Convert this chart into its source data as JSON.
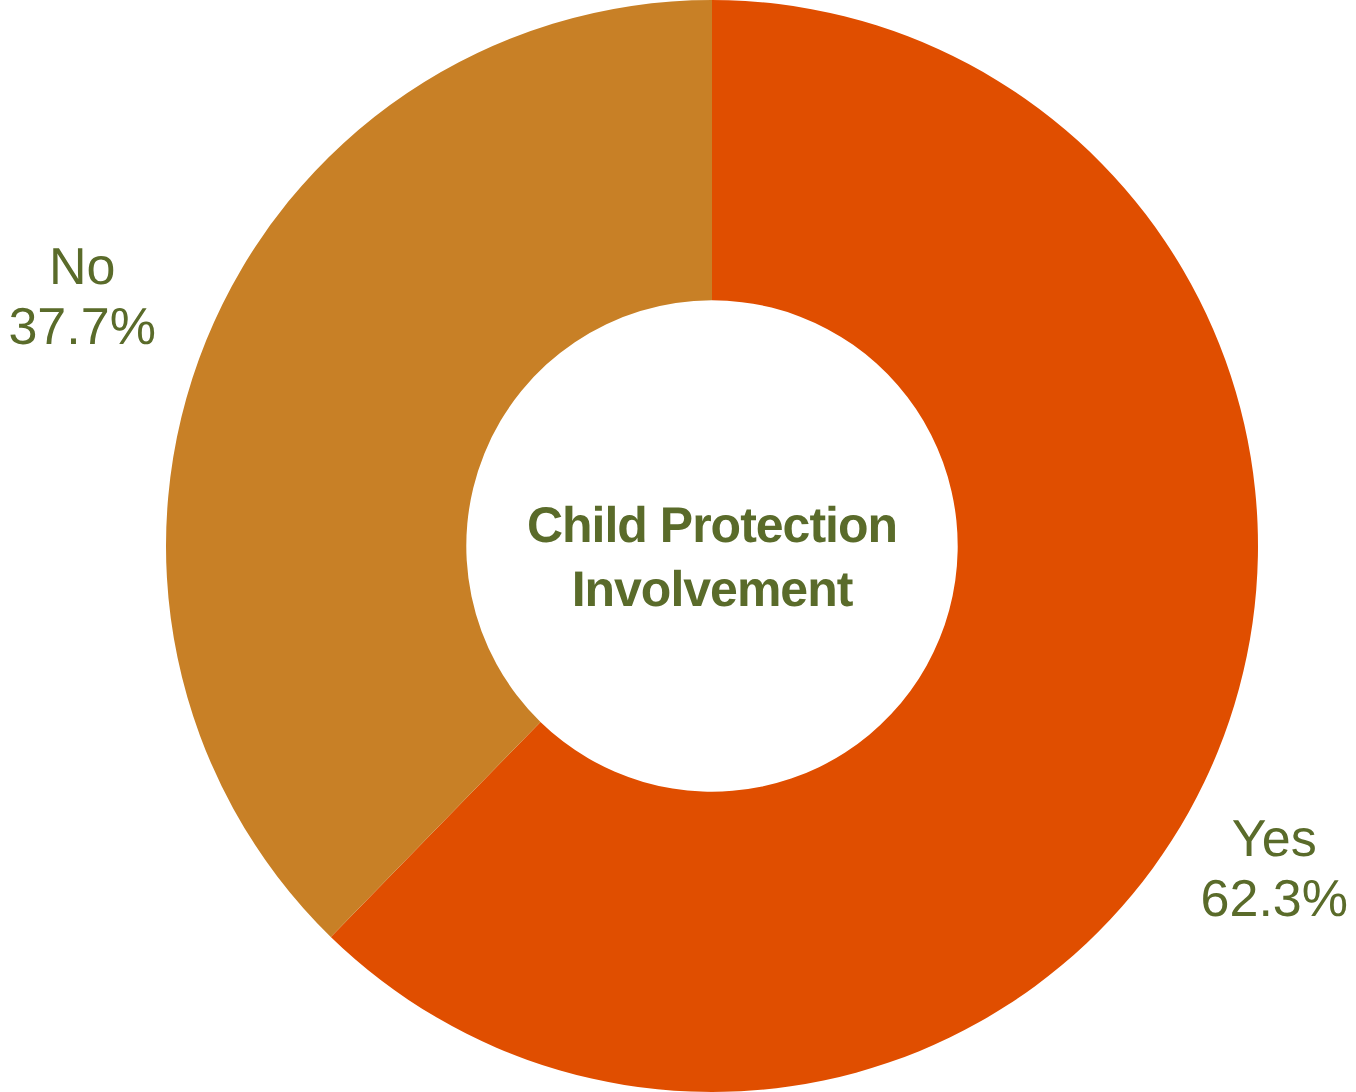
{
  "chart_data": {
    "type": "donut",
    "title": "Child Protection Involvement",
    "categories": [
      "Yes",
      "No"
    ],
    "values": [
      62.3,
      37.7
    ],
    "colors": [
      "#e04e00",
      "#c88026"
    ],
    "value_labels": [
      "62.3%",
      "37.7%"
    ],
    "legend": false
  }
}
